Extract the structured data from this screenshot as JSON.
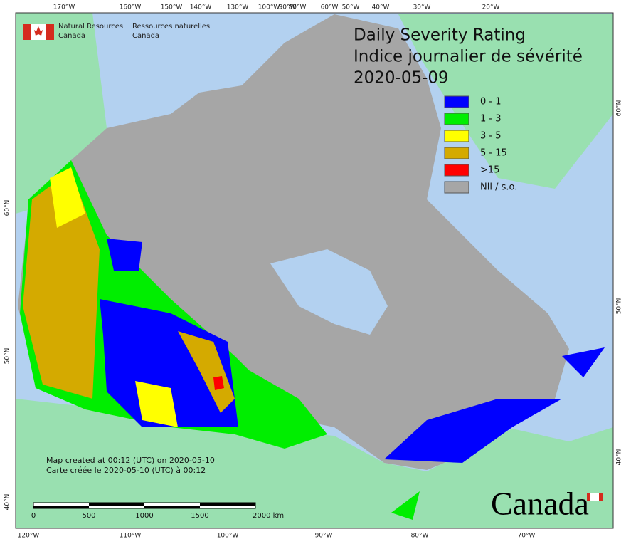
{
  "organization": {
    "en": [
      "Natural Resources",
      "Canada"
    ],
    "fr": [
      "Ressources naturelles",
      "Canada"
    ]
  },
  "title": [
    "Daily Severity Rating",
    "Indice journalier de sévérité",
    "2020-05-09"
  ],
  "legend": [
    {
      "label": "0 - 1",
      "color": "#0000ff"
    },
    {
      "label": "1 - 3",
      "color": "#00ee00"
    },
    {
      "label": "3 - 5",
      "color": "#ffff00"
    },
    {
      "label": "5 - 15",
      "color": "#d4aa00"
    },
    {
      "label": ">15",
      "color": "#ff0000"
    },
    {
      "label": "Nil / s.o.",
      "color": "#a6a6a6"
    }
  ],
  "graticule": {
    "top": [
      "170°W",
      "160°W",
      "150°W",
      "140°W",
      "130°W",
      "100°W",
      "90°W",
      "80°W",
      "60°W",
      "50°W",
      "40°W",
      "30°W",
      "20°W"
    ],
    "bottom": [
      "120°W",
      "110°W",
      "100°W",
      "90°W",
      "80°W",
      "70°W"
    ],
    "left": [
      "60°N",
      "50°N",
      "40°N"
    ],
    "right": [
      "60°N",
      "50°N",
      "40°N"
    ]
  },
  "scale_bar": [
    "0",
    "500",
    "1000",
    "1500",
    "2000 km"
  ],
  "footnote": [
    "Map created at 00:12 (UTC) on 2020-05-10",
    "Carte créée le 2020-05-10 (UTC) à 00:12"
  ],
  "wordmark": "Canada"
}
